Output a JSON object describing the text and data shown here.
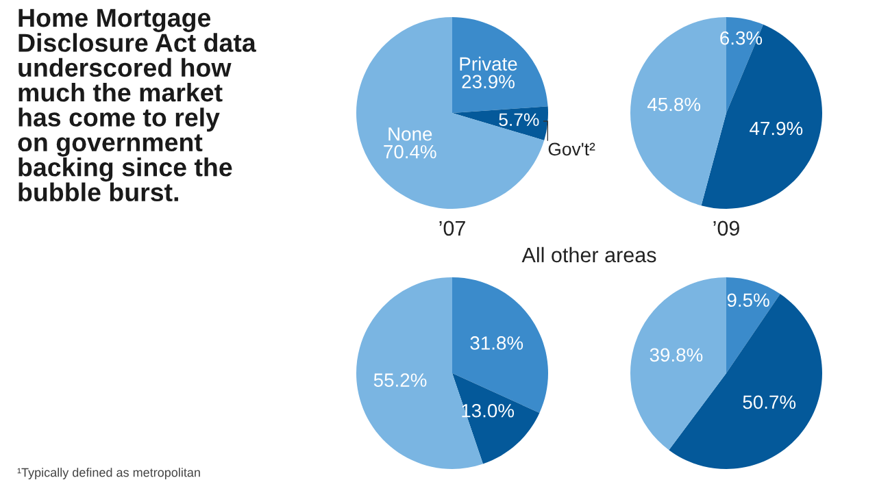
{
  "chart_data": [
    {
      "type": "pie",
      "xlabel": "’07",
      "categories": [
        "Private",
        "Gov't²",
        "None"
      ],
      "values": [
        23.9,
        5.7,
        70.4
      ],
      "value_labels": [
        "23.9%",
        "5.7%",
        "70.4%"
      ],
      "colors": [
        "#3b8bcb",
        "#04599a",
        "#7ab5e2"
      ],
      "annotations": [
        "Home Mortgage\nDisclosure Act data\nunderscored how\nmuch the market\nhas come to rely\non government\nbacking since the\nbubble burst.",
        "¹Typically defined as metropolitan"
      ]
    },
    {
      "type": "pie",
      "xlabel": "’09",
      "categories": [
        null,
        null,
        null
      ],
      "values": [
        6.3,
        47.9,
        45.8
      ],
      "value_labels": [
        "6.3%",
        "47.9%",
        "45.8%"
      ],
      "colors": [
        "#3b8bcb",
        "#04599a",
        "#7ab5e2"
      ]
    },
    {
      "type": "pie",
      "title": "All other areas",
      "categories": [
        null,
        null,
        null
      ],
      "values": [
        31.8,
        13.0,
        55.2
      ],
      "value_labels": [
        "31.8%",
        "13.0%",
        "55.2%"
      ],
      "colors": [
        "#3b8bcb",
        "#04599a",
        "#7ab5e2"
      ]
    },
    {
      "type": "pie",
      "categories": [
        null,
        null,
        null
      ],
      "values": [
        9.5,
        50.7,
        39.8
      ],
      "value_labels": [
        "9.5%",
        "50.7%",
        "39.8%"
      ],
      "colors": [
        "#3b8bcb",
        "#04599a",
        "#7ab5e2"
      ]
    }
  ]
}
